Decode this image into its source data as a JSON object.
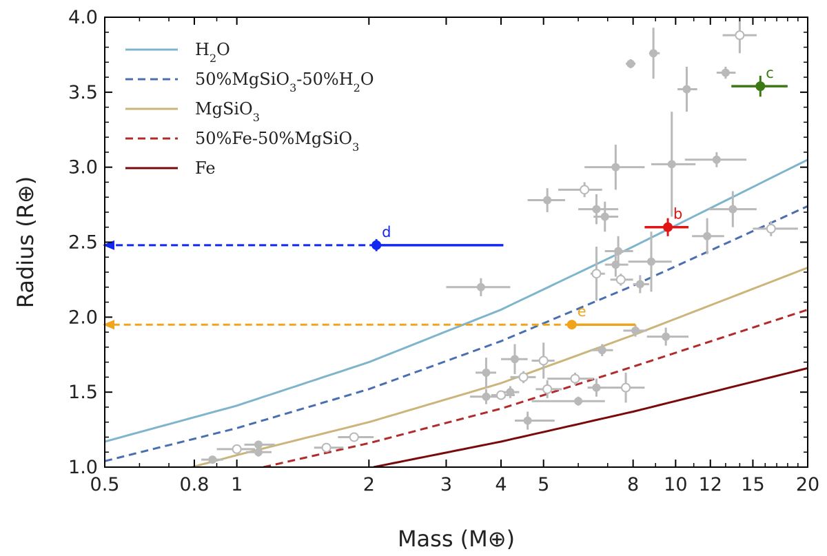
{
  "chart_data": {
    "type": "scatter",
    "title": "",
    "xlabel": "Mass (M⊕)",
    "ylabel": "Radius (R⊕)",
    "xscale": "log",
    "xlim": [
      0.5,
      20
    ],
    "ylim": [
      1.0,
      4.0
    ],
    "xticks": [
      0.5,
      0.8,
      1,
      2,
      3,
      4,
      5,
      8,
      10,
      12,
      15,
      20
    ],
    "xtick_labels": [
      "0.5",
      "0.8",
      "1",
      "2",
      "3",
      "4",
      "5",
      "8",
      "10",
      "12",
      "15",
      "20"
    ],
    "yticks": [
      1.0,
      1.5,
      2.0,
      2.5,
      3.0,
      3.5,
      4.0
    ],
    "ytick_labels": [
      "1.0",
      "1.5",
      "2.0",
      "2.5",
      "3.0",
      "3.5",
      "4.0"
    ],
    "legend_position": "top-left",
    "composition_curves": [
      {
        "name": "H2O",
        "label_main": "H",
        "label_sub": "2",
        "label_rest": "O",
        "color": "#7fb5cc",
        "dash": "solid",
        "x": [
          0.5,
          1,
          2,
          4,
          8,
          20
        ],
        "y": [
          1.17,
          1.41,
          1.7,
          2.05,
          2.47,
          3.05
        ]
      },
      {
        "name": "50%MgSiO3-50%H2O",
        "label_main": "50%MgSiO",
        "label_sub": "3",
        "label_rest": "-50%H",
        "label_sub2": "2",
        "label_rest2": "O",
        "color": "#4a6fb0",
        "dash": "dashed",
        "x": [
          0.5,
          1,
          2,
          4,
          8,
          20
        ],
        "y": [
          1.04,
          1.26,
          1.52,
          1.84,
          2.21,
          2.74
        ]
      },
      {
        "name": "MgSiO3",
        "label_main": "MgSiO",
        "label_sub": "3",
        "label_rest": "",
        "color": "#cbb57b",
        "dash": "solid",
        "x": [
          0.79,
          1,
          2,
          4,
          8,
          20
        ],
        "y": [
          1.0,
          1.08,
          1.3,
          1.56,
          1.88,
          2.33
        ]
      },
      {
        "name": "50%Fe-50%MgSiO3",
        "label_main": "50%Fe-50%MgSiO",
        "label_sub": "3",
        "label_rest": "",
        "color": "#b22b2b",
        "dash": "dashed",
        "x": [
          1.15,
          2,
          4,
          8,
          20
        ],
        "y": [
          1.0,
          1.16,
          1.39,
          1.67,
          2.05
        ]
      },
      {
        "name": "Fe",
        "label_main": "Fe",
        "label_sub": "",
        "label_rest": "",
        "color": "#7a0a0a",
        "dash": "solid",
        "x": [
          2.05,
          4,
          8,
          20
        ],
        "y": [
          1.0,
          1.17,
          1.37,
          1.66
        ]
      }
    ],
    "known_planets_filled": [
      {
        "x": 0.88,
        "y": 1.05,
        "xerr": [
          0.05,
          0.05
        ],
        "yerr": [
          0.02,
          0.02
        ]
      },
      {
        "x": 1.12,
        "y": 1.15,
        "xerr": [
          0.08,
          0.1
        ],
        "yerr": [
          0.02,
          0.02
        ]
      },
      {
        "x": 1.12,
        "y": 1.1,
        "xerr": [
          0.07,
          0.08
        ],
        "yerr": [
          0.03,
          0.03
        ]
      },
      {
        "x": 3.6,
        "y": 2.2,
        "xerr": [
          0.6,
          0.6
        ],
        "yerr": [
          0.06,
          0.06
        ]
      },
      {
        "x": 3.7,
        "y": 1.63,
        "xerr": [
          0.2,
          0.2
        ],
        "yerr": [
          0.1,
          0.1
        ]
      },
      {
        "x": 3.7,
        "y": 1.47,
        "xerr": [
          0.3,
          0.4
        ],
        "yerr": [
          0.05,
          0.05
        ]
      },
      {
        "x": 4.3,
        "y": 1.72,
        "xerr": [
          0.3,
          0.3
        ],
        "yerr": [
          0.1,
          0.1
        ]
      },
      {
        "x": 4.2,
        "y": 1.5,
        "xerr": [
          0.2,
          0.2
        ],
        "yerr": [
          0.04,
          0.04
        ]
      },
      {
        "x": 4.6,
        "y": 1.31,
        "xerr": [
          0.3,
          0.7
        ],
        "yerr": [
          0.06,
          0.06
        ]
      },
      {
        "x": 5.1,
        "y": 2.78,
        "xerr": [
          0.5,
          0.5
        ],
        "yerr": [
          0.08,
          0.08
        ]
      },
      {
        "x": 6.0,
        "y": 1.44,
        "xerr": [
          1.3,
          0.9
        ],
        "yerr": [
          0.03,
          0.03
        ]
      },
      {
        "x": 6.6,
        "y": 2.72,
        "xerr": [
          0.6,
          0.8
        ],
        "yerr": [
          0.1,
          0.1
        ]
      },
      {
        "x": 6.6,
        "y": 1.53,
        "xerr": [
          0.3,
          0.4
        ],
        "yerr": [
          0.06,
          0.06
        ]
      },
      {
        "x": 6.9,
        "y": 2.67,
        "xerr": [
          0.4,
          0.5
        ],
        "yerr": [
          0.1,
          0.1
        ]
      },
      {
        "x": 6.8,
        "y": 1.78,
        "xerr": [
          0.4,
          0.4
        ],
        "yerr": [
          0.04,
          0.04
        ]
      },
      {
        "x": 7.3,
        "y": 3.0,
        "xerr": [
          1.1,
          1.2
        ],
        "yerr": [
          0.15,
          0.15
        ]
      },
      {
        "x": 7.4,
        "y": 2.44,
        "xerr": [
          0.5,
          0.6
        ],
        "yerr": [
          0.1,
          0.1
        ]
      },
      {
        "x": 7.3,
        "y": 2.35,
        "xerr": [
          0.4,
          0.5
        ],
        "yerr": [
          0.08,
          0.08
        ]
      },
      {
        "x": 7.9,
        "y": 3.69,
        "xerr": [
          0.2,
          0.2
        ],
        "yerr": [
          0.03,
          0.03
        ]
      },
      {
        "x": 8.3,
        "y": 2.22,
        "xerr": [
          0.3,
          0.4
        ],
        "yerr": [
          0.06,
          0.06
        ]
      },
      {
        "x": 8.8,
        "y": 2.37,
        "xerr": [
          1.0,
          1.0
        ],
        "yerr": [
          0.2,
          0.2
        ]
      },
      {
        "x": 8.1,
        "y": 1.91,
        "xerr": [
          0.5,
          0.5
        ],
        "yerr": [
          0.04,
          0.04
        ]
      },
      {
        "x": 8.9,
        "y": 3.76,
        "xerr": [
          0.2,
          0.3
        ],
        "yerr": [
          0.17,
          0.17
        ]
      },
      {
        "x": 9.5,
        "y": 1.87,
        "xerr": [
          0.9,
          1.2
        ],
        "yerr": [
          0.06,
          0.06
        ]
      },
      {
        "x": 9.8,
        "y": 3.02,
        "xerr": [
          1.0,
          1.3
        ],
        "yerr": [
          0.35,
          0.35
        ]
      },
      {
        "x": 10.6,
        "y": 3.52,
        "xerr": [
          0.5,
          0.6
        ],
        "yerr": [
          0.15,
          0.15
        ]
      },
      {
        "x": 11.8,
        "y": 2.54,
        "xerr": [
          0.9,
          1.1
        ],
        "yerr": [
          0.12,
          0.12
        ]
      },
      {
        "x": 12.4,
        "y": 3.05,
        "xerr": [
          1.9,
          2.1
        ],
        "yerr": [
          0.05,
          0.05
        ]
      },
      {
        "x": 13.0,
        "y": 3.63,
        "xerr": [
          0.6,
          0.7
        ],
        "yerr": [
          0.04,
          0.04
        ]
      },
      {
        "x": 13.5,
        "y": 2.72,
        "xerr": [
          1.6,
          1.8
        ],
        "yerr": [
          0.12,
          0.12
        ]
      }
    ],
    "known_planets_open": [
      {
        "x": 1.0,
        "y": 1.12,
        "xerr": [
          0.1,
          0.1
        ],
        "yerr": [
          0.02,
          0.02
        ]
      },
      {
        "x": 1.6,
        "y": 1.13,
        "xerr": [
          0.1,
          0.15
        ],
        "yerr": [
          0.03,
          0.03
        ]
      },
      {
        "x": 1.85,
        "y": 1.2,
        "xerr": [
          0.15,
          0.2
        ],
        "yerr": [
          0.03,
          0.03
        ]
      },
      {
        "x": 4.0,
        "y": 1.48,
        "xerr": [
          0.2,
          0.3
        ],
        "yerr": [
          0.03,
          0.03
        ]
      },
      {
        "x": 4.5,
        "y": 1.6,
        "xerr": [
          0.3,
          0.3
        ],
        "yerr": [
          0.04,
          0.04
        ]
      },
      {
        "x": 5.0,
        "y": 1.71,
        "xerr": [
          0.3,
          0.3
        ],
        "yerr": [
          0.12,
          0.12
        ]
      },
      {
        "x": 5.1,
        "y": 1.52,
        "xerr": [
          0.3,
          0.4
        ],
        "yerr": [
          0.06,
          0.06
        ]
      },
      {
        "x": 5.9,
        "y": 1.59,
        "xerr": [
          0.8,
          0.6
        ],
        "yerr": [
          0.04,
          0.04
        ]
      },
      {
        "x": 6.2,
        "y": 2.85,
        "xerr": [
          0.8,
          0.6
        ],
        "yerr": [
          0.05,
          0.05
        ]
      },
      {
        "x": 6.6,
        "y": 2.29,
        "xerr": [
          0.2,
          0.3
        ],
        "yerr": [
          0.18,
          0.18
        ]
      },
      {
        "x": 7.5,
        "y": 2.25,
        "xerr": [
          0.4,
          0.5
        ],
        "yerr": [
          0.04,
          0.04
        ]
      },
      {
        "x": 7.7,
        "y": 1.53,
        "xerr": [
          0.7,
          0.8
        ],
        "yerr": [
          0.1,
          0.1
        ]
      },
      {
        "x": 14.0,
        "y": 3.88,
        "xerr": [
          1.2,
          1.3
        ],
        "yerr": [
          0.12,
          0.12
        ]
      },
      {
        "x": 16.5,
        "y": 2.59,
        "xerr": [
          1.5,
          2.5
        ],
        "yerr": [
          0.05,
          0.05
        ]
      }
    ],
    "highlighted_planets": [
      {
        "label": "b",
        "x": 9.6,
        "y": 2.6,
        "xerr": [
          1.1,
          1.1
        ],
        "yerr": [
          0.06,
          0.06
        ],
        "color": "#e01414",
        "upper_limit": false
      },
      {
        "label": "c",
        "x": 15.6,
        "y": 3.54,
        "xerr": [
          2.2,
          2.4
        ],
        "yerr": [
          0.07,
          0.07
        ],
        "color": "#3b7a13",
        "upper_limit": false
      },
      {
        "label": "d",
        "x": 2.08,
        "y": 2.48,
        "xerr_plus": 1.97,
        "limit_arrow_to": 0.5,
        "yerr": [
          0.04,
          0.04
        ],
        "color": "#1227f0",
        "upper_limit": true
      },
      {
        "label": "e",
        "x": 5.8,
        "y": 1.95,
        "xerr_plus": 2.3,
        "limit_arrow_to": 0.5,
        "yerr": [
          0.03,
          0.03
        ],
        "color": "#f0a41c",
        "upper_limit": true
      }
    ]
  }
}
